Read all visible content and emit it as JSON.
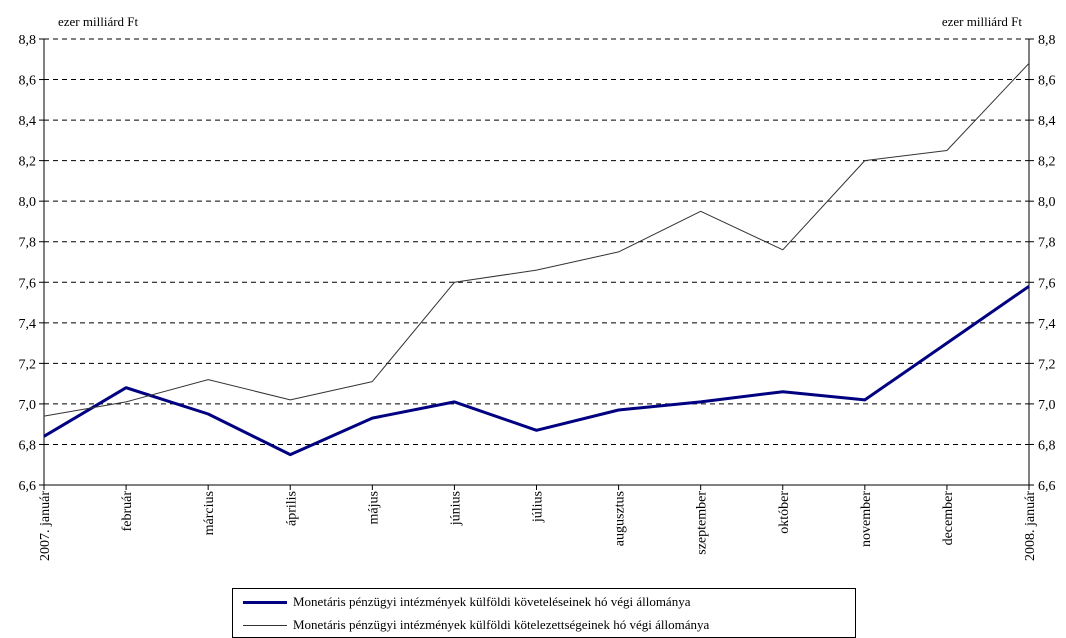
{
  "chart_data": {
    "type": "line",
    "left_unit": "ezer milliárd Ft",
    "right_unit": "ezer milliárd Ft",
    "categories": [
      "2007. január",
      "február",
      "március",
      "április",
      "május",
      "június",
      "július",
      "augusztus",
      "szeptember",
      "október",
      "november",
      "december",
      "2008. január"
    ],
    "ylim": [
      6.6,
      8.8
    ],
    "ytick_values": [
      6.6,
      6.8,
      7.0,
      7.2,
      7.4,
      7.6,
      7.8,
      8.0,
      8.2,
      8.4,
      8.6,
      8.8
    ],
    "ytick_labels": [
      "6,6",
      "6,8",
      "7,0",
      "7,2",
      "7,4",
      "7,6",
      "7,8",
      "8,0",
      "8,2",
      "8,4",
      "8,6",
      "8,8"
    ],
    "grid": "horizontal dashed",
    "legend_position": "bottom",
    "series": [
      {
        "name": "Monetáris pénzügyi intézmények külföldi követeléseinek hó végi állománya",
        "color": "#000080",
        "style": "thick",
        "values": [
          6.84,
          7.08,
          6.95,
          6.75,
          6.93,
          7.01,
          6.87,
          6.97,
          7.01,
          7.06,
          7.02,
          7.3,
          7.58
        ]
      },
      {
        "name": "Monetáris pénzügyi intézmények külföldi kötelezettségeinek hó végi állománya",
        "color": "#333333",
        "style": "thin",
        "values": [
          6.94,
          7.01,
          7.12,
          7.02,
          7.11,
          7.6,
          7.66,
          7.75,
          7.95,
          7.76,
          8.2,
          8.25,
          8.68
        ]
      }
    ]
  }
}
